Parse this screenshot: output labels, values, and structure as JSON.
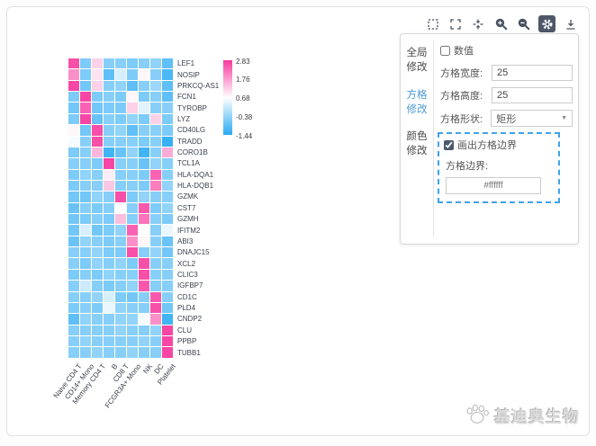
{
  "toolbar": {
    "icons": [
      {
        "name": "marquee-zoom"
      },
      {
        "name": "fullscreen"
      },
      {
        "name": "reset-center"
      },
      {
        "name": "zoom-in"
      },
      {
        "name": "zoom-out"
      },
      {
        "name": "settings",
        "active": true
      },
      {
        "name": "download"
      }
    ],
    "icon_color": "#4a5362",
    "active_bg": "#4d5868"
  },
  "panel": {
    "sections": [
      {
        "id": "global",
        "lines": [
          "全局",
          "修改"
        ],
        "active": false
      },
      {
        "id": "cell",
        "lines": [
          "方格",
          "修改"
        ],
        "active": true
      },
      {
        "id": "color",
        "lines": [
          "颜色",
          "修改"
        ],
        "active": false
      }
    ],
    "value_checkbox": {
      "label": "数值",
      "checked": false
    },
    "fields": [
      {
        "label": "方格宽度:",
        "value": "25",
        "type": "input"
      },
      {
        "label": "方格高度:",
        "value": "25",
        "type": "input"
      },
      {
        "label": "方格形状:",
        "value": "矩形",
        "type": "select"
      }
    ],
    "border_group": {
      "checkbox_label": "画出方格边界",
      "checked": true,
      "border_label": "方格边界:",
      "border_color_value": "#ffffff"
    },
    "accent_color": "#4f9ad5",
    "dash_color": "#3fa3ec"
  },
  "watermark": {
    "text": "基迪奥生物"
  },
  "chart_data": {
    "type": "heatmap",
    "rows": [
      "LEF1",
      "NOSIP",
      "PRKCQ-AS1",
      "FCN1",
      "TYROBP",
      "LYZ",
      "CD40LG",
      "TRADD",
      "CORO1B",
      "TCL1A",
      "HLA-DQA1",
      "HLA-DQB1",
      "GZMK",
      "CST7",
      "GZMH",
      "IFITM2",
      "ABI3",
      "DNAJC15",
      "XCL2",
      "CLIC3",
      "IGFBP7",
      "CD1C",
      "PLD4",
      "CNDP2",
      "CLU",
      "PPBP",
      "TUBB1"
    ],
    "columns": [
      "Naive CD4 T",
      "CD14+ Mono",
      "Memory CD4 T",
      "B",
      "CD8 T",
      "FCGR3A+ Mono",
      "NK",
      "DC",
      "Platelet"
    ],
    "values": [
      [
        2.6,
        -0.6,
        1.2,
        -0.5,
        -0.5,
        -0.6,
        -0.5,
        -0.4,
        -0.9
      ],
      [
        1.9,
        -0.6,
        1.0,
        -0.9,
        0.3,
        -0.6,
        0.8,
        -0.5,
        -1.1
      ],
      [
        2.7,
        -0.7,
        1.2,
        -0.5,
        -0.4,
        -0.9,
        -0.5,
        -0.3,
        -0.9
      ],
      [
        -0.6,
        2.7,
        -0.6,
        -0.5,
        -0.6,
        0.8,
        -0.6,
        -0.5,
        -0.9
      ],
      [
        -0.7,
        2.4,
        -0.7,
        -0.6,
        -0.6,
        1.2,
        0.4,
        -0.5,
        -0.5
      ],
      [
        -0.6,
        2.7,
        -0.8,
        -0.5,
        -0.6,
        -0.4,
        -0.6,
        1.2,
        -0.6
      ],
      [
        0.8,
        -0.7,
        2.6,
        -0.5,
        -0.4,
        -0.9,
        -0.5,
        -0.5,
        -0.6
      ],
      [
        0.6,
        -0.5,
        2.6,
        -0.5,
        -0.5,
        -0.5,
        -0.6,
        -0.5,
        -1.3
      ],
      [
        -0.6,
        -0.5,
        1.5,
        -1.2,
        -0.8,
        -0.4,
        -1.2,
        -0.5,
        1.6
      ],
      [
        -0.5,
        -0.5,
        -0.6,
        2.7,
        -0.5,
        -0.5,
        -0.8,
        -0.4,
        -0.5
      ],
      [
        -0.6,
        -0.4,
        -0.5,
        0.9,
        -0.5,
        -0.5,
        -0.6,
        2.4,
        -0.5
      ],
      [
        -0.6,
        -0.5,
        -0.5,
        1.3,
        -0.5,
        -0.5,
        -0.6,
        2.1,
        -0.4
      ],
      [
        -0.7,
        -0.7,
        -0.4,
        -0.5,
        2.6,
        -0.6,
        -0.4,
        -0.5,
        -0.5
      ],
      [
        -0.8,
        -0.5,
        -0.6,
        -0.5,
        0.7,
        -0.5,
        2.5,
        -0.6,
        -0.4
      ],
      [
        -0.7,
        -0.6,
        -0.5,
        -0.6,
        1.4,
        -0.5,
        2.2,
        -0.5,
        -0.6
      ],
      [
        -0.7,
        0.3,
        -0.7,
        -0.6,
        -0.4,
        2.4,
        0.7,
        -0.5,
        0.5
      ],
      [
        -0.8,
        -0.4,
        -0.5,
        -0.6,
        -0.5,
        1.9,
        0.8,
        -0.5,
        -0.8
      ],
      [
        -0.5,
        -0.5,
        -0.4,
        -0.6,
        -0.6,
        2.6,
        -0.5,
        -0.4,
        -0.7
      ],
      [
        -0.5,
        -0.6,
        -0.4,
        -0.5,
        -0.4,
        -0.6,
        2.6,
        -0.5,
        -0.5
      ],
      [
        -0.6,
        -0.5,
        -0.6,
        -0.4,
        -0.5,
        -0.5,
        2.6,
        -0.5,
        -0.5
      ],
      [
        -0.5,
        0.2,
        -0.5,
        -0.6,
        -0.5,
        -0.4,
        2.5,
        -0.5,
        -0.5
      ],
      [
        -0.5,
        -0.5,
        -0.4,
        0.3,
        -0.6,
        -0.7,
        -0.5,
        2.5,
        -0.5
      ],
      [
        -0.6,
        -0.5,
        -0.6,
        0.5,
        -0.4,
        -0.5,
        -0.5,
        2.6,
        -0.7
      ],
      [
        -0.9,
        -0.4,
        -0.5,
        -0.5,
        -0.4,
        -0.4,
        0.6,
        1.9,
        -1.2
      ],
      [
        -0.5,
        -0.5,
        -0.5,
        -0.5,
        -0.4,
        -0.5,
        -0.5,
        -0.4,
        2.7
      ],
      [
        -0.5,
        -0.4,
        -0.5,
        -0.5,
        -0.5,
        -0.5,
        -0.4,
        -0.5,
        2.7
      ],
      [
        -0.5,
        -0.5,
        -0.4,
        -0.5,
        -0.5,
        -0.4,
        -0.5,
        -0.5,
        2.7
      ]
    ],
    "colorbar": {
      "tick_labels": [
        "2.83",
        "1.76",
        "0.68",
        "-0.38",
        "-1.44"
      ],
      "max": 2.83,
      "mid": 0.7,
      "min": -1.44,
      "max_color": "#f73a9e",
      "mid_color": "#ffffff",
      "min_color": "#29aaf3",
      "position": "top-right"
    },
    "cell_border_color": "#ffffff",
    "grid_on": true
  }
}
